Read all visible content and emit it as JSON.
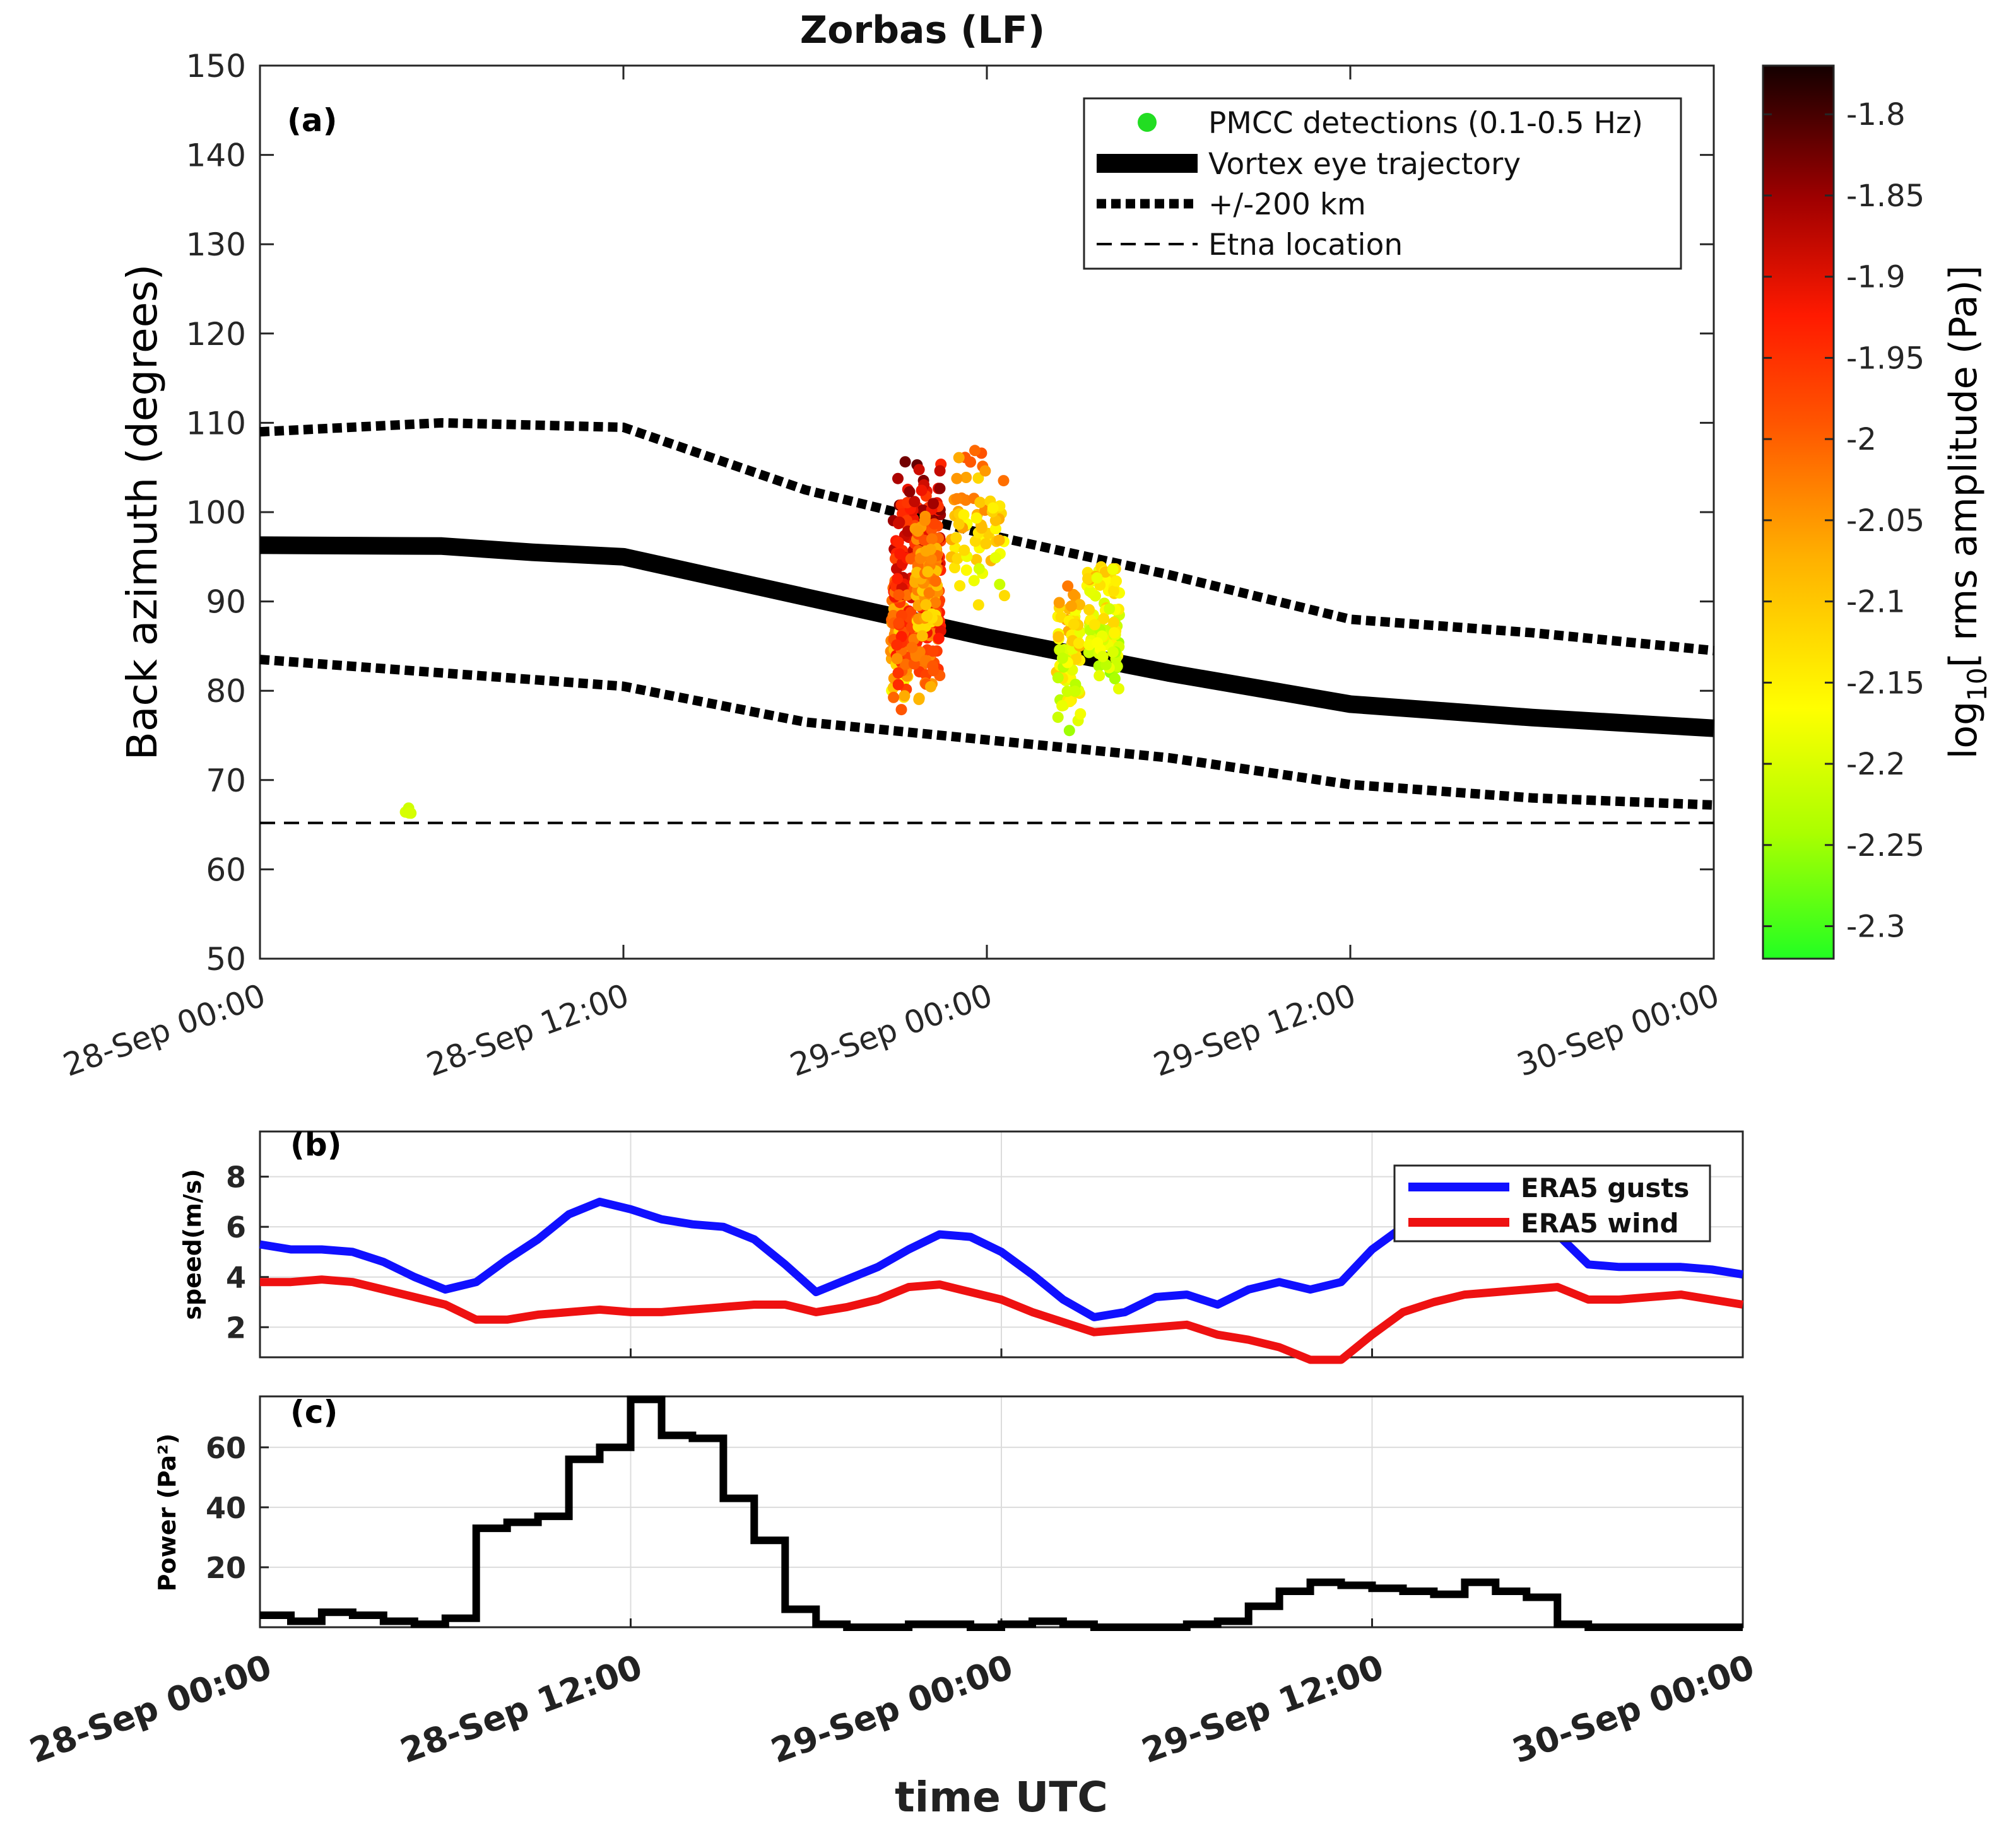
{
  "figure": {
    "title": "Zorbas (LF)"
  },
  "chart_data": [
    {
      "panel": "(a)",
      "type": "scatter",
      "title": "Zorbas (LF)",
      "xlabel": "",
      "ylabel": "Back azimuth (degrees)",
      "x_range_hours": [
        0,
        48
      ],
      "x_ticks": [
        {
          "h": 0,
          "label": "28-Sep 00:00"
        },
        {
          "h": 12,
          "label": "28-Sep 12:00"
        },
        {
          "h": 24,
          "label": "29-Sep 00:00"
        },
        {
          "h": 36,
          "label": "29-Sep 12:00"
        },
        {
          "h": 48,
          "label": "30-Sep 00:00"
        }
      ],
      "ylim": [
        50,
        150
      ],
      "y_ticks": [
        50,
        60,
        70,
        80,
        90,
        100,
        110,
        120,
        130,
        140,
        150
      ],
      "grid": false,
      "legend_position": "top-right",
      "legend": [
        {
          "name": "PMCC detections (0.1-0.5 Hz)",
          "style": "dot",
          "color": "#22dd22"
        },
        {
          "name": "Vortex eye trajectory",
          "style": "thick",
          "color": "#000000"
        },
        {
          "name": "+/-200 km",
          "style": "dotted",
          "color": "#000000"
        },
        {
          "name": "Etna location",
          "style": "dashed",
          "color": "#000000"
        }
      ],
      "series": [
        {
          "name": "Vortex eye trajectory",
          "x": [
            0,
            6,
            9,
            12,
            18,
            24,
            30,
            36,
            42,
            48
          ],
          "y": [
            96.3,
            96.2,
            95.5,
            95,
            90.5,
            86,
            82,
            78.5,
            77,
            75.8
          ]
        },
        {
          "name": "+/-200 km",
          "part": "upper",
          "x": [
            0,
            6,
            12,
            18,
            24,
            30,
            36,
            42,
            48
          ],
          "y": [
            109,
            110,
            109.5,
            102.5,
            97.5,
            93,
            88,
            86.5,
            84.5
          ]
        },
        {
          "name": "+/-200 km",
          "part": "lower",
          "x": [
            0,
            6,
            12,
            18,
            24,
            30,
            36,
            42,
            48
          ],
          "y": [
            83.5,
            82,
            80.5,
            76.5,
            74.5,
            72.5,
            69.5,
            68,
            67.2
          ]
        },
        {
          "name": "Etna location",
          "x": [
            0,
            48
          ],
          "y": [
            65.2,
            65.2
          ]
        }
      ],
      "detections": {
        "colorbar_param": "log10 rms amplitude (Pa)",
        "clusters": [
          {
            "x_range": [
              20.8,
              21.4
            ],
            "y_range": [
              78,
              94
            ],
            "count": 70,
            "amp_range": [
              -2.2,
              -1.95
            ]
          },
          {
            "x_range": [
              20.9,
              22.5
            ],
            "y_range": [
              77,
              107
            ],
            "count": 280,
            "amp_range": [
              -2.1,
              -1.78
            ]
          },
          {
            "x_range": [
              21.6,
              22.4
            ],
            "y_range": [
              85,
              101
            ],
            "count": 90,
            "amp_range": [
              -2.15,
              -1.95
            ]
          },
          {
            "x_range": [
              22.8,
              24.6
            ],
            "y_range": [
              89,
              108
            ],
            "count": 70,
            "amp_range": [
              -2.25,
              -1.95
            ]
          },
          {
            "x_range": [
              26.3,
              27.1
            ],
            "y_range": [
              75,
              93
            ],
            "count": 70,
            "amp_range": [
              -2.3,
              -2.0
            ]
          },
          {
            "x_range": [
              27.3,
              28.4
            ],
            "y_range": [
              78,
              95.5
            ],
            "count": 90,
            "amp_range": [
              -2.3,
              -2.05
            ]
          },
          {
            "x_range": [
              4.8,
              5.0
            ],
            "y_range": [
              66,
              67.5
            ],
            "count": 4,
            "amp_range": [
              -2.22,
              -2.18
            ]
          }
        ]
      }
    },
    {
      "panel": "colorbar",
      "type": "heatmap",
      "label": "log10[ rms amplitude (Pa)]",
      "label_parts": {
        "prefix": "log",
        "sub": "10",
        "suffix": "[ rms amplitude (Pa)]"
      },
      "range": [
        -2.32,
        -1.77
      ],
      "ticks": [
        "-1.8",
        "-1.85",
        "-1.9",
        "-1.95",
        "-2",
        "-2.05",
        "-2.1",
        "-2.15",
        "-2.2",
        "-2.25",
        "-2.3"
      ],
      "tick_values": [
        -1.8,
        -1.85,
        -1.9,
        -1.95,
        -2.0,
        -2.05,
        -2.1,
        -2.15,
        -2.2,
        -2.25,
        -2.3
      ],
      "colormap": [
        "#1a0000",
        "#6b0000",
        "#c80000",
        "#ff2200",
        "#ff7700",
        "#ffc000",
        "#ffff00",
        "#22ff22"
      ]
    },
    {
      "panel": "(b)",
      "type": "line",
      "xlabel": "",
      "ylabel": "speed(m/s)",
      "x_range_hours": [
        0,
        48
      ],
      "ylim": [
        0.8,
        9.8
      ],
      "y_ticks": [
        2,
        4,
        6,
        8
      ],
      "grid": true,
      "legend_position": "top-right",
      "series": [
        {
          "name": "ERA5 gusts",
          "color": "#1010ff",
          "x": [
            0,
            1,
            2,
            3,
            4,
            5,
            6,
            7,
            8,
            9,
            10,
            11,
            12,
            13,
            14,
            15,
            16,
            17,
            18,
            19,
            20,
            21,
            22,
            23,
            24,
            25,
            26,
            27,
            28,
            29,
            30,
            31,
            32,
            33,
            34,
            35,
            36,
            37,
            38,
            39,
            40,
            41,
            42,
            43,
            44,
            45,
            46,
            47,
            48
          ],
          "y": [
            5.3,
            5.1,
            5.1,
            5.0,
            4.6,
            4.0,
            3.5,
            3.8,
            4.7,
            5.5,
            6.5,
            7.0,
            6.7,
            6.3,
            6.1,
            6.0,
            5.5,
            4.5,
            3.4,
            3.9,
            4.4,
            5.1,
            5.7,
            5.6,
            5.0,
            4.1,
            3.1,
            2.4,
            2.6,
            3.2,
            3.3,
            2.9,
            3.5,
            3.8,
            3.5,
            3.8,
            5.1,
            6.0,
            6.5,
            6.8,
            6.8,
            6.5,
            5.7,
            4.5,
            4.4,
            4.4,
            4.4,
            4.3,
            4.1
          ]
        },
        {
          "name": "ERA5 wind",
          "color": "#ee1111",
          "x": [
            0,
            1,
            2,
            3,
            4,
            5,
            6,
            7,
            8,
            9,
            10,
            11,
            12,
            13,
            14,
            15,
            16,
            17,
            18,
            19,
            20,
            21,
            22,
            23,
            24,
            25,
            26,
            27,
            28,
            29,
            30,
            31,
            32,
            33,
            34,
            35,
            36,
            37,
            38,
            39,
            40,
            41,
            42,
            43,
            44,
            45,
            46,
            47,
            48
          ],
          "y": [
            3.8,
            3.8,
            3.9,
            3.8,
            3.5,
            3.2,
            2.9,
            2.3,
            2.3,
            2.5,
            2.6,
            2.7,
            2.6,
            2.6,
            2.7,
            2.8,
            2.9,
            2.9,
            2.6,
            2.8,
            3.1,
            3.6,
            3.7,
            3.4,
            3.1,
            2.6,
            2.2,
            1.8,
            1.9,
            2.0,
            2.1,
            1.7,
            1.5,
            1.2,
            0.7,
            0.7,
            1.7,
            2.6,
            3.0,
            3.3,
            3.4,
            3.5,
            3.6,
            3.1,
            3.1,
            3.2,
            3.3,
            3.1,
            2.9
          ]
        }
      ]
    },
    {
      "panel": "(c)",
      "type": "line",
      "step": true,
      "xlabel": "time UTC",
      "ylabel": "Power (Pa²)",
      "x_range_hours": [
        0,
        48
      ],
      "x_ticks": [
        {
          "h": 0,
          "label": "28-Sep 00:00"
        },
        {
          "h": 12,
          "label": "28-Sep 12:00"
        },
        {
          "h": 24,
          "label": "29-Sep 00:00"
        },
        {
          "h": 36,
          "label": "29-Sep 12:00"
        },
        {
          "h": 48,
          "label": "30-Sep 00:00"
        }
      ],
      "ylim": [
        0,
        77
      ],
      "y_ticks": [
        20,
        40,
        60
      ],
      "grid": true,
      "series": [
        {
          "name": "",
          "color": "#000000",
          "x": [
            0,
            1,
            2,
            3,
            4,
            5,
            6,
            7,
            8,
            9,
            10,
            11,
            12,
            13,
            14,
            15,
            16,
            17,
            18,
            19,
            20,
            21,
            22,
            23,
            24,
            25,
            26,
            27,
            28,
            29,
            30,
            31,
            32,
            33,
            34,
            35,
            36,
            37,
            38,
            39,
            40,
            41,
            42,
            43,
            44,
            45,
            46,
            47,
            48
          ],
          "y": [
            4,
            2,
            5,
            4,
            2,
            1,
            3,
            33,
            35,
            37,
            56,
            60,
            76,
            64,
            63,
            43,
            29,
            6,
            1,
            0,
            0,
            1,
            1,
            0,
            1,
            2,
            1,
            0,
            0,
            0,
            1,
            2,
            7,
            12,
            15,
            14,
            13,
            12,
            11,
            15,
            12,
            10,
            1,
            0,
            0,
            0,
            0,
            0,
            0
          ]
        }
      ]
    }
  ]
}
